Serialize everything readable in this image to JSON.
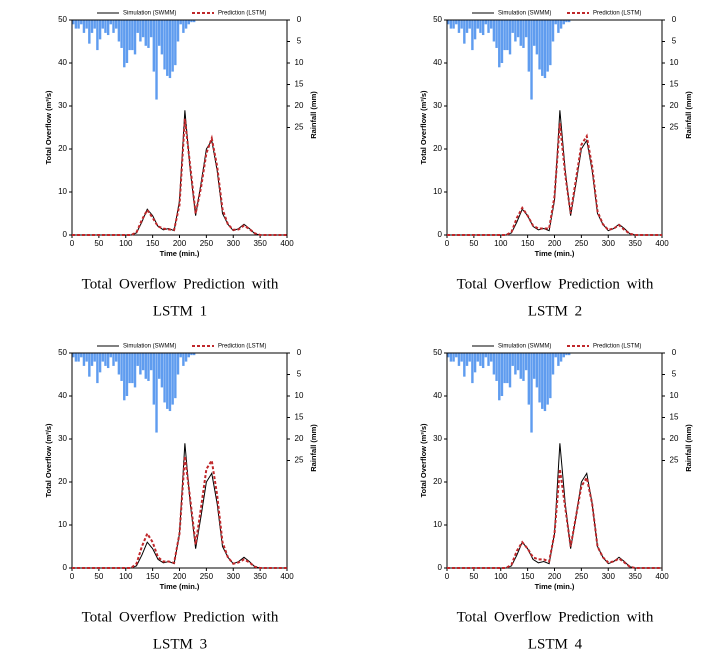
{
  "chart_data": [
    {
      "type": "combo",
      "caption": [
        "Total Overflow Prediction with",
        "LSTM 1"
      ],
      "xlabel": "Time (min.)",
      "ylabel": "Total Overflow (m³/s)",
      "y2label": "Rainfall (mm)",
      "x": [
        0,
        10,
        20,
        30,
        40,
        50,
        60,
        70,
        80,
        90,
        100,
        110,
        120,
        130,
        140,
        150,
        160,
        170,
        180,
        190,
        200,
        210,
        220,
        230,
        240,
        250,
        260,
        270,
        280,
        290,
        300,
        310,
        320,
        330,
        340,
        350,
        360,
        370,
        380,
        390,
        400
      ],
      "series": [
        {
          "name": "Simulation (SWMM)",
          "color": "#000000",
          "values": [
            0,
            0,
            0,
            0,
            0,
            0,
            0,
            0,
            0,
            0,
            0,
            0,
            0.5,
            3,
            6,
            4.5,
            2,
            1.2,
            1.5,
            1,
            8,
            29,
            15,
            4.5,
            12,
            20,
            22,
            15,
            5,
            2.5,
            1,
            1.5,
            2.5,
            1.5,
            0.3,
            0,
            0,
            0,
            0,
            0,
            0
          ]
        },
        {
          "name": "Prediction (LSTM)",
          "color": "#c0282b",
          "values": [
            0,
            0,
            0,
            0,
            0,
            0,
            0,
            0,
            0,
            0,
            0,
            0,
            0.6,
            3.5,
            5.8,
            4,
            2,
            1.5,
            1.3,
            1.2,
            7,
            27,
            16,
            5,
            11,
            19,
            22.5,
            16,
            6,
            2.5,
            1.2,
            1.3,
            2.2,
            1.4,
            0.4,
            0,
            0,
            0,
            0,
            0,
            0
          ]
        },
        {
          "axis": "y2",
          "color": "#5f9cef",
          "x": [
            0,
            5,
            10,
            15,
            20,
            25,
            30,
            35,
            40,
            45,
            50,
            55,
            60,
            65,
            70,
            75,
            80,
            85,
            90,
            95,
            100,
            105,
            110,
            115,
            120,
            125,
            130,
            135,
            140,
            145,
            150,
            155,
            160,
            165,
            170,
            175,
            180,
            185,
            190,
            195,
            200,
            205,
            210,
            215,
            220,
            225
          ],
          "values": [
            1,
            2,
            2,
            1,
            3,
            2,
            5.5,
            3,
            2,
            7,
            4.5,
            2,
            3,
            3.5,
            1,
            3,
            2,
            5,
            6.5,
            11,
            10,
            7,
            7,
            8,
            3,
            5,
            4,
            6,
            6.5,
            4,
            12,
            18.5,
            6,
            8,
            11.5,
            13,
            13.5,
            12,
            10.5,
            5,
            1,
            3,
            2,
            1,
            0.5,
            0.5
          ]
        }
      ],
      "xlim": [
        0,
        400
      ],
      "xticks": [
        0,
        50,
        100,
        150,
        200,
        250,
        300,
        350,
        400
      ],
      "ylim": [
        0,
        50
      ],
      "yticks": [
        0,
        10,
        20,
        30,
        40,
        50
      ],
      "y2lim": [
        0,
        50
      ],
      "y2ticks": [
        0,
        5,
        10,
        15,
        20,
        25
      ],
      "y2_inverted": true
    },
    {
      "type": "combo",
      "caption": [
        "Total Overflow Prediction with",
        "LSTM 2"
      ],
      "xlabel": "Time (min.)",
      "ylabel": "Total Overflow (m³/s)",
      "y2label": "Rainfall (mm)",
      "x": [
        0,
        10,
        20,
        30,
        40,
        50,
        60,
        70,
        80,
        90,
        100,
        110,
        120,
        130,
        140,
        150,
        160,
        170,
        180,
        190,
        200,
        210,
        220,
        230,
        240,
        250,
        260,
        270,
        280,
        290,
        300,
        310,
        320,
        330,
        340,
        350,
        360,
        370,
        380,
        390,
        400
      ],
      "series": [
        {
          "name": "Simulation (SWMM)",
          "color": "#000000",
          "values": [
            0,
            0,
            0,
            0,
            0,
            0,
            0,
            0,
            0,
            0,
            0,
            0,
            0.5,
            3,
            6,
            4.5,
            2,
            1.2,
            1.5,
            1,
            8,
            29,
            15,
            4.5,
            12,
            20,
            22,
            15,
            5,
            2.5,
            1,
            1.5,
            2.5,
            1.5,
            0.3,
            0,
            0,
            0,
            0,
            0,
            0
          ]
        },
        {
          "name": "Prediction (LSTM)",
          "color": "#c0282b",
          "values": [
            0,
            0,
            0,
            0,
            0,
            0,
            0,
            0,
            0,
            0,
            0,
            0,
            0.7,
            4,
            6.3,
            4.5,
            2.2,
            1.5,
            1.5,
            1.5,
            9,
            26,
            14,
            5,
            13,
            21,
            23,
            16,
            5.5,
            2.5,
            1.2,
            1.5,
            2.3,
            1.2,
            0.3,
            0,
            0,
            0,
            0,
            0,
            0
          ]
        },
        {
          "axis": "y2",
          "color": "#5f9cef",
          "x": [
            0,
            5,
            10,
            15,
            20,
            25,
            30,
            35,
            40,
            45,
            50,
            55,
            60,
            65,
            70,
            75,
            80,
            85,
            90,
            95,
            100,
            105,
            110,
            115,
            120,
            125,
            130,
            135,
            140,
            145,
            150,
            155,
            160,
            165,
            170,
            175,
            180,
            185,
            190,
            195,
            200,
            205,
            210,
            215,
            220,
            225
          ],
          "values": [
            1,
            2,
            2,
            1,
            3,
            2,
            5.5,
            3,
            2,
            7,
            4.5,
            2,
            3,
            3.5,
            1,
            3,
            2,
            5,
            6.5,
            11,
            10,
            7,
            7,
            8,
            3,
            5,
            4,
            6,
            6.5,
            4,
            12,
            18.5,
            6,
            8,
            11.5,
            13,
            13.5,
            12,
            10.5,
            5,
            1,
            3,
            2,
            1,
            0.5,
            0.5
          ]
        }
      ],
      "xlim": [
        0,
        400
      ],
      "xticks": [
        0,
        50,
        100,
        150,
        200,
        250,
        300,
        350,
        400
      ],
      "ylim": [
        0,
        50
      ],
      "yticks": [
        0,
        10,
        20,
        30,
        40,
        50
      ],
      "y2lim": [
        0,
        50
      ],
      "y2ticks": [
        0,
        5,
        10,
        15,
        20,
        25
      ],
      "y2_inverted": true
    },
    {
      "type": "combo",
      "caption": [
        "Total Overflow Prediction with",
        "LSTM 3"
      ],
      "xlabel": "Time (min.)",
      "ylabel": "Total Overflow (m³/s)",
      "y2label": "Rainfall (mm)",
      "x": [
        0,
        10,
        20,
        30,
        40,
        50,
        60,
        70,
        80,
        90,
        100,
        110,
        120,
        130,
        140,
        150,
        160,
        170,
        180,
        190,
        200,
        210,
        220,
        230,
        240,
        250,
        260,
        270,
        280,
        290,
        300,
        310,
        320,
        330,
        340,
        350,
        360,
        370,
        380,
        390,
        400
      ],
      "series": [
        {
          "name": "Simulation (SWMM)",
          "color": "#000000",
          "values": [
            0,
            0,
            0,
            0,
            0,
            0,
            0,
            0,
            0,
            0,
            0,
            0,
            0.5,
            3,
            6,
            4.5,
            2,
            1.2,
            1.5,
            1,
            8,
            29,
            15,
            4.5,
            12,
            20,
            22,
            15,
            5,
            2.5,
            1,
            1.5,
            2.5,
            1.5,
            0.3,
            0,
            0,
            0,
            0,
            0,
            0
          ]
        },
        {
          "name": "Prediction (LSTM)",
          "color": "#c0282b",
          "values": [
            0,
            0,
            0,
            0,
            0,
            0,
            0,
            0,
            0,
            0,
            0,
            0,
            1,
            5,
            8,
            6,
            2.5,
            1.5,
            1.5,
            1.2,
            8,
            26,
            16,
            5.5,
            14,
            23,
            25,
            17,
            6,
            2.5,
            1,
            1.3,
            2,
            1.3,
            0.3,
            0,
            0,
            0,
            0,
            0,
            0
          ]
        },
        {
          "axis": "y2",
          "color": "#5f9cef",
          "x": [
            0,
            5,
            10,
            15,
            20,
            25,
            30,
            35,
            40,
            45,
            50,
            55,
            60,
            65,
            70,
            75,
            80,
            85,
            90,
            95,
            100,
            105,
            110,
            115,
            120,
            125,
            130,
            135,
            140,
            145,
            150,
            155,
            160,
            165,
            170,
            175,
            180,
            185,
            190,
            195,
            200,
            205,
            210,
            215,
            220,
            225
          ],
          "values": [
            1,
            2,
            2,
            1,
            3,
            2,
            5.5,
            3,
            2,
            7,
            4.5,
            2,
            3,
            3.5,
            1,
            3,
            2,
            5,
            6.5,
            11,
            10,
            7,
            7,
            8,
            3,
            5,
            4,
            6,
            6.5,
            4,
            12,
            18.5,
            6,
            8,
            11.5,
            13,
            13.5,
            12,
            10.5,
            5,
            1,
            3,
            2,
            1,
            0.5,
            0.5
          ]
        }
      ],
      "xlim": [
        0,
        400
      ],
      "xticks": [
        0,
        50,
        100,
        150,
        200,
        250,
        300,
        350,
        400
      ],
      "ylim": [
        0,
        50
      ],
      "yticks": [
        0,
        10,
        20,
        30,
        40,
        50
      ],
      "y2lim": [
        0,
        50
      ],
      "y2ticks": [
        0,
        5,
        10,
        15,
        20,
        25
      ],
      "y2_inverted": true
    },
    {
      "type": "combo",
      "caption": [
        "Total Overflow Prediction with",
        "LSTM 4"
      ],
      "xlabel": "Time (min.)",
      "ylabel": "Total Overflow (m³/s)",
      "y2label": "Rainfall (mm)",
      "x": [
        0,
        10,
        20,
        30,
        40,
        50,
        60,
        70,
        80,
        90,
        100,
        110,
        120,
        130,
        140,
        150,
        160,
        170,
        180,
        190,
        200,
        210,
        220,
        230,
        240,
        250,
        260,
        270,
        280,
        290,
        300,
        310,
        320,
        330,
        340,
        350,
        360,
        370,
        380,
        390,
        400
      ],
      "series": [
        {
          "name": "Simulation (SWMM)",
          "color": "#000000",
          "values": [
            0,
            0,
            0,
            0,
            0,
            0,
            0,
            0,
            0,
            0,
            0,
            0,
            0.5,
            3,
            6,
            4.5,
            2,
            1.2,
            1.5,
            1,
            8,
            29,
            15,
            4.5,
            12,
            20,
            22,
            15,
            5,
            2.5,
            1,
            1.5,
            2.5,
            1.5,
            0.3,
            0,
            0,
            0,
            0,
            0,
            0
          ]
        },
        {
          "name": "Prediction (LSTM)",
          "color": "#c0282b",
          "values": [
            0,
            0,
            0,
            0,
            0,
            0,
            0,
            0,
            0,
            0,
            0,
            0,
            0.8,
            4,
            6,
            4.5,
            2.5,
            2,
            2,
            1.5,
            8,
            23,
            14,
            5,
            12,
            19,
            21,
            15,
            5,
            2.5,
            1.3,
            1.5,
            2.2,
            1.3,
            0.3,
            0,
            0,
            0,
            0,
            0,
            0
          ]
        },
        {
          "axis": "y2",
          "color": "#5f9cef",
          "x": [
            0,
            5,
            10,
            15,
            20,
            25,
            30,
            35,
            40,
            45,
            50,
            55,
            60,
            65,
            70,
            75,
            80,
            85,
            90,
            95,
            100,
            105,
            110,
            115,
            120,
            125,
            130,
            135,
            140,
            145,
            150,
            155,
            160,
            165,
            170,
            175,
            180,
            185,
            190,
            195,
            200,
            205,
            210,
            215,
            220,
            225
          ],
          "values": [
            1,
            2,
            2,
            1,
            3,
            2,
            5.5,
            3,
            2,
            7,
            4.5,
            2,
            3,
            3.5,
            1,
            3,
            2,
            5,
            6.5,
            11,
            10,
            7,
            7,
            8,
            3,
            5,
            4,
            6,
            6.5,
            4,
            12,
            18.5,
            6,
            8,
            11.5,
            13,
            13.5,
            12,
            10.5,
            5,
            1,
            3,
            2,
            1,
            0.5,
            0.5
          ]
        }
      ],
      "xlim": [
        0,
        400
      ],
      "xticks": [
        0,
        50,
        100,
        150,
        200,
        250,
        300,
        350,
        400
      ],
      "ylim": [
        0,
        50
      ],
      "yticks": [
        0,
        10,
        20,
        30,
        40,
        50
      ],
      "y2lim": [
        0,
        50
      ],
      "y2ticks": [
        0,
        5,
        10,
        15,
        20,
        25
      ],
      "y2_inverted": true
    }
  ]
}
